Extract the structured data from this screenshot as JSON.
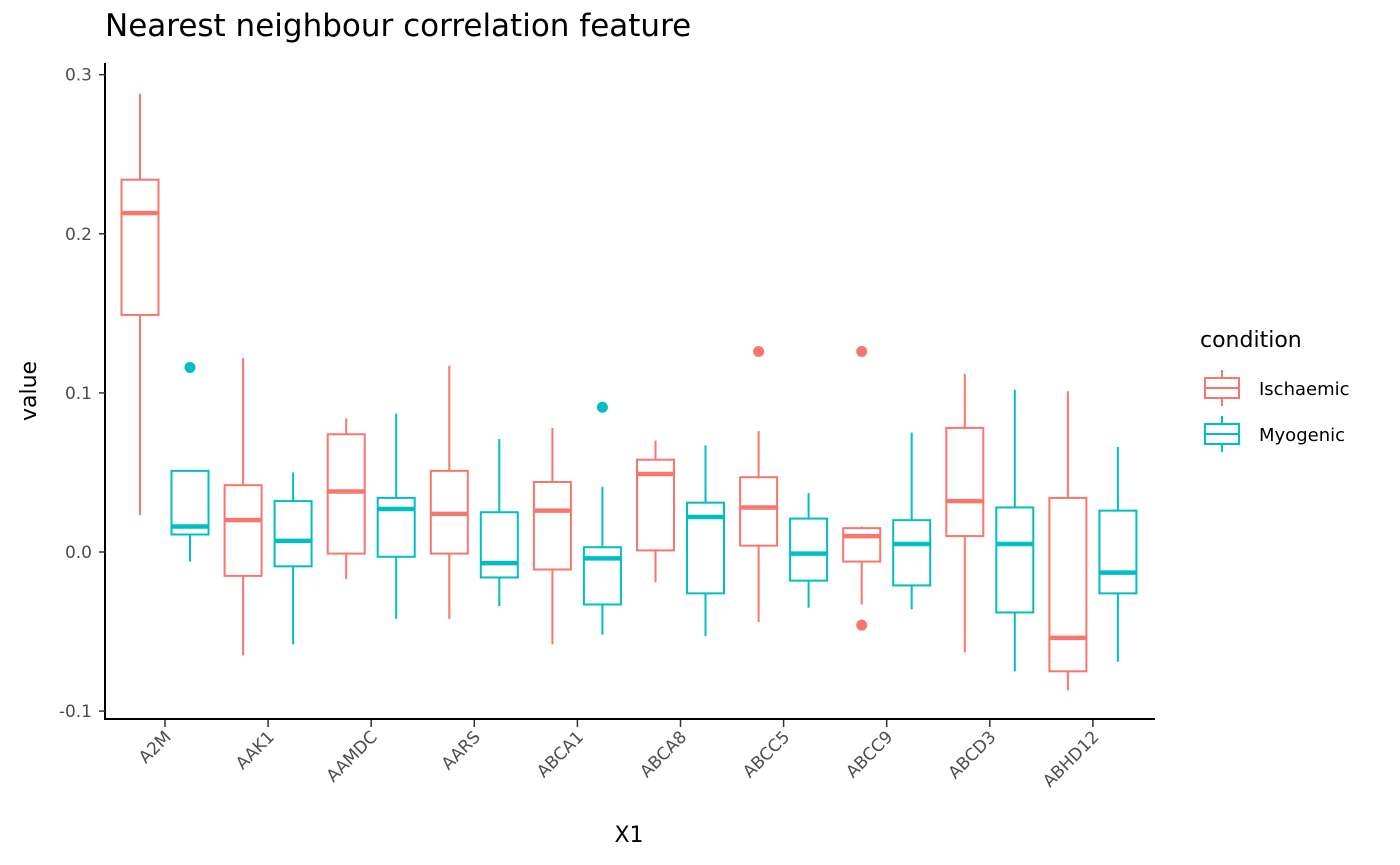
{
  "chart_data": {
    "type": "box",
    "title": "Nearest neighbour correlation feature",
    "xlabel": "X1",
    "ylabel": "value",
    "ylim": [
      -0.105,
      0.305
    ],
    "yticks": [
      -0.1,
      0.0,
      0.1,
      0.2,
      0.3
    ],
    "ytick_labels": [
      "-0.1",
      "0.0",
      "0.1",
      "0.2",
      "0.3"
    ],
    "categories": [
      "A2M",
      "AAK1",
      "AAMDC",
      "AARS",
      "ABCA1",
      "ABCA8",
      "ABCC5",
      "ABCC9",
      "ABCD3",
      "ABHD12"
    ],
    "grid": false,
    "legend": {
      "title": "condition",
      "position": "right",
      "entries": [
        "Ischaemic",
        "Myogenic"
      ]
    },
    "series": [
      {
        "name": "Ischaemic",
        "color": "#F8766D",
        "boxes": [
          {
            "min": 0.023,
            "q1": 0.149,
            "median": 0.213,
            "q3": 0.234,
            "max": 0.288,
            "outliers": []
          },
          {
            "min": -0.065,
            "q1": -0.015,
            "median": 0.02,
            "q3": 0.042,
            "max": 0.122,
            "outliers": []
          },
          {
            "min": -0.017,
            "q1": -0.001,
            "median": 0.038,
            "q3": 0.074,
            "max": 0.084,
            "outliers": []
          },
          {
            "min": -0.042,
            "q1": -0.001,
            "median": 0.024,
            "q3": 0.051,
            "max": 0.117,
            "outliers": []
          },
          {
            "min": -0.058,
            "q1": -0.011,
            "median": 0.026,
            "q3": 0.044,
            "max": 0.078,
            "outliers": []
          },
          {
            "min": -0.019,
            "q1": 0.001,
            "median": 0.049,
            "q3": 0.058,
            "max": 0.07,
            "outliers": []
          },
          {
            "min": -0.044,
            "q1": 0.004,
            "median": 0.028,
            "q3": 0.047,
            "max": 0.076,
            "outliers": [
              0.126
            ]
          },
          {
            "min": -0.033,
            "q1": -0.006,
            "median": 0.01,
            "q3": 0.015,
            "max": 0.016,
            "outliers": [
              0.126,
              -0.046
            ]
          },
          {
            "min": -0.063,
            "q1": 0.01,
            "median": 0.032,
            "q3": 0.078,
            "max": 0.112,
            "outliers": []
          },
          {
            "min": -0.087,
            "q1": -0.075,
            "median": -0.054,
            "q3": 0.034,
            "max": 0.101,
            "outliers": []
          }
        ]
      },
      {
        "name": "Myogenic",
        "color": "#00BFC4",
        "boxes": [
          {
            "min": -0.006,
            "q1": 0.011,
            "median": 0.016,
            "q3": 0.051,
            "max": 0.051,
            "outliers": [
              0.116
            ]
          },
          {
            "min": -0.058,
            "q1": -0.009,
            "median": 0.007,
            "q3": 0.032,
            "max": 0.05,
            "outliers": []
          },
          {
            "min": -0.042,
            "q1": -0.003,
            "median": 0.027,
            "q3": 0.034,
            "max": 0.087,
            "outliers": []
          },
          {
            "min": -0.034,
            "q1": -0.016,
            "median": -0.007,
            "q3": 0.025,
            "max": 0.071,
            "outliers": []
          },
          {
            "min": -0.052,
            "q1": -0.033,
            "median": -0.004,
            "q3": 0.003,
            "max": 0.041,
            "outliers": [
              0.091
            ]
          },
          {
            "min": -0.053,
            "q1": -0.026,
            "median": 0.022,
            "q3": 0.031,
            "max": 0.067,
            "outliers": []
          },
          {
            "min": -0.035,
            "q1": -0.018,
            "median": -0.001,
            "q3": 0.021,
            "max": 0.037,
            "outliers": []
          },
          {
            "min": -0.036,
            "q1": -0.021,
            "median": 0.005,
            "q3": 0.02,
            "max": 0.075,
            "outliers": []
          },
          {
            "min": -0.075,
            "q1": -0.038,
            "median": 0.005,
            "q3": 0.028,
            "max": 0.102,
            "outliers": []
          },
          {
            "min": -0.069,
            "q1": -0.026,
            "median": -0.013,
            "q3": 0.026,
            "max": 0.066,
            "outliers": []
          }
        ]
      }
    ]
  }
}
